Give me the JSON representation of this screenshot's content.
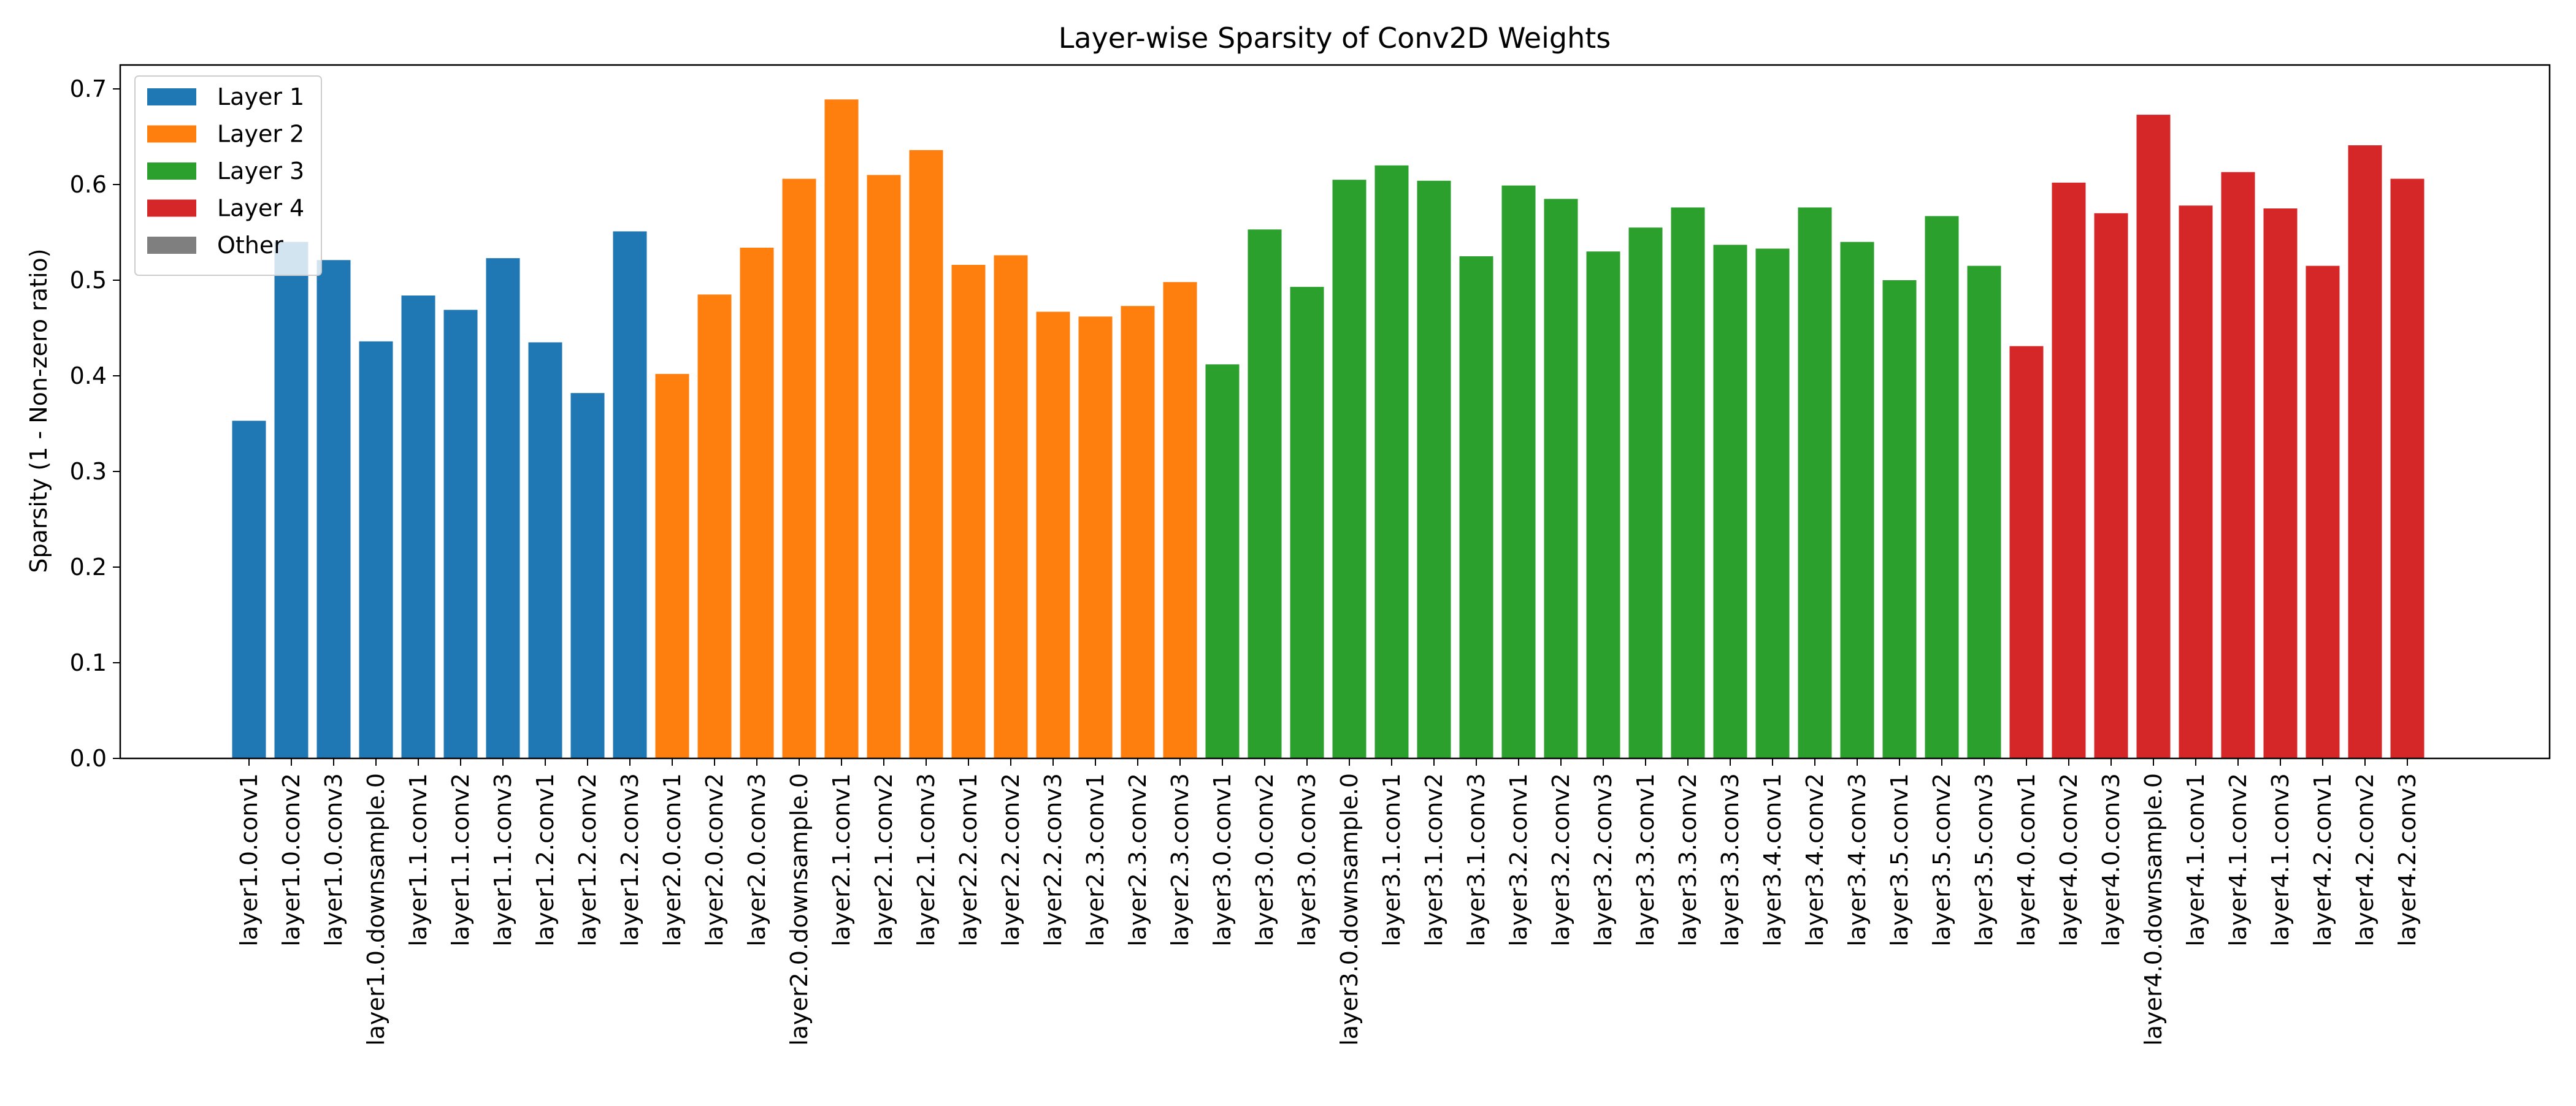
{
  "chart_data": {
    "type": "bar",
    "title": "Layer-wise Sparsity of Conv2D Weights",
    "xlabel": "",
    "ylabel": "Sparsity (1 - Non-zero ratio)",
    "ylim": [
      0,
      0.725
    ],
    "yticks": [
      0.0,
      0.1,
      0.2,
      0.3,
      0.4,
      0.5,
      0.6,
      0.7
    ],
    "ytick_labels": [
      "0.0",
      "0.1",
      "0.2",
      "0.3",
      "0.4",
      "0.5",
      "0.6",
      "0.7"
    ],
    "grid": false,
    "legend_placement": "top-left",
    "legend": [
      {
        "label": "Layer 1",
        "color": "#1f77b4"
      },
      {
        "label": "Layer 2",
        "color": "#ff7f0e"
      },
      {
        "label": "Layer 3",
        "color": "#2ca02c"
      },
      {
        "label": "Layer 4",
        "color": "#d62728"
      },
      {
        "label": "Other",
        "color": "#7f7f7f"
      }
    ],
    "categories": [
      "layer1.0.conv1",
      "layer1.0.conv2",
      "layer1.0.conv3",
      "layer1.0.downsample.0",
      "layer1.1.conv1",
      "layer1.1.conv2",
      "layer1.1.conv3",
      "layer1.2.conv1",
      "layer1.2.conv2",
      "layer1.2.conv3",
      "layer2.0.conv1",
      "layer2.0.conv2",
      "layer2.0.conv3",
      "layer2.0.downsample.0",
      "layer2.1.conv1",
      "layer2.1.conv2",
      "layer2.1.conv3",
      "layer2.2.conv1",
      "layer2.2.conv2",
      "layer2.2.conv3",
      "layer2.3.conv1",
      "layer2.3.conv2",
      "layer2.3.conv3",
      "layer3.0.conv1",
      "layer3.0.conv2",
      "layer3.0.conv3",
      "layer3.0.downsample.0",
      "layer3.1.conv1",
      "layer3.1.conv2",
      "layer3.1.conv3",
      "layer3.2.conv1",
      "layer3.2.conv2",
      "layer3.2.conv3",
      "layer3.3.conv1",
      "layer3.3.conv2",
      "layer3.3.conv3",
      "layer3.4.conv1",
      "layer3.4.conv2",
      "layer3.4.conv3",
      "layer3.5.conv1",
      "layer3.5.conv2",
      "layer3.5.conv3",
      "layer4.0.conv1",
      "layer4.0.conv2",
      "layer4.0.conv3",
      "layer4.0.downsample.0",
      "layer4.1.conv1",
      "layer4.1.conv2",
      "layer4.1.conv3",
      "layer4.2.conv1",
      "layer4.2.conv2",
      "layer4.2.conv3"
    ],
    "values": [
      0.353,
      0.54,
      0.521,
      0.436,
      0.484,
      0.469,
      0.523,
      0.435,
      0.382,
      0.551,
      0.402,
      0.485,
      0.534,
      0.606,
      0.689,
      0.61,
      0.636,
      0.516,
      0.526,
      0.467,
      0.462,
      0.473,
      0.498,
      0.412,
      0.553,
      0.493,
      0.605,
      0.62,
      0.604,
      0.525,
      0.599,
      0.585,
      0.53,
      0.555,
      0.576,
      0.537,
      0.533,
      0.576,
      0.54,
      0.5,
      0.567,
      0.515,
      0.431,
      0.602,
      0.57,
      0.673,
      0.578,
      0.613,
      0.575,
      0.515,
      0.641,
      0.606
    ],
    "groups": [
      "Layer 1",
      "Layer 1",
      "Layer 1",
      "Layer 1",
      "Layer 1",
      "Layer 1",
      "Layer 1",
      "Layer 1",
      "Layer 1",
      "Layer 1",
      "Layer 2",
      "Layer 2",
      "Layer 2",
      "Layer 2",
      "Layer 2",
      "Layer 2",
      "Layer 2",
      "Layer 2",
      "Layer 2",
      "Layer 2",
      "Layer 2",
      "Layer 2",
      "Layer 2",
      "Layer 3",
      "Layer 3",
      "Layer 3",
      "Layer 3",
      "Layer 3",
      "Layer 3",
      "Layer 3",
      "Layer 3",
      "Layer 3",
      "Layer 3",
      "Layer 3",
      "Layer 3",
      "Layer 3",
      "Layer 3",
      "Layer 3",
      "Layer 3",
      "Layer 3",
      "Layer 3",
      "Layer 3",
      "Layer 4",
      "Layer 4",
      "Layer 4",
      "Layer 4",
      "Layer 4",
      "Layer 4",
      "Layer 4",
      "Layer 4",
      "Layer 4",
      "Layer 4"
    ]
  }
}
